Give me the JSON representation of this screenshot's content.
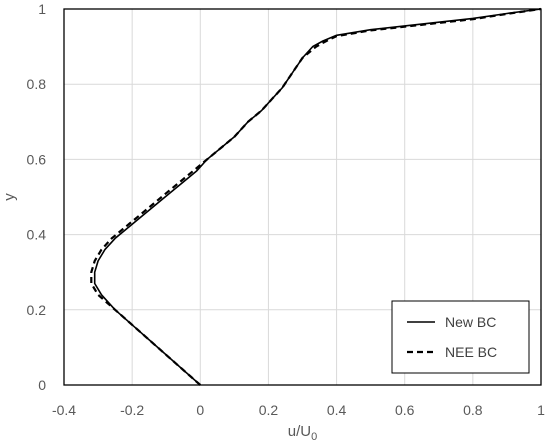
{
  "chart_data": {
    "type": "line",
    "title": "",
    "xlabel": "u/U",
    "xlabel_subscript": "0",
    "ylabel": "y",
    "xlim": [
      -0.4,
      1.0
    ],
    "ylim": [
      0,
      1.0
    ],
    "grid": true,
    "legend_position": "bottom-right",
    "x_ticks": [
      -0.4,
      -0.2,
      0,
      0.2,
      0.4,
      0.6,
      0.8,
      1
    ],
    "x_tick_labels": [
      "-0.4",
      "-0.2",
      "0",
      "0.2",
      "0.4",
      "0.6",
      "0.8",
      "1"
    ],
    "y_ticks": [
      0,
      0.2,
      0.4,
      0.6,
      0.8,
      1
    ],
    "y_tick_labels": [
      "0",
      "0.2",
      "0.4",
      "0.6",
      "0.8",
      "1"
    ],
    "series": [
      {
        "name": "New BC",
        "color": "#000000",
        "dash": "solid",
        "points": [
          [
            0,
            0
          ],
          [
            -0.05,
            0.04
          ],
          [
            -0.1,
            0.08
          ],
          [
            -0.15,
            0.12
          ],
          [
            -0.2,
            0.16
          ],
          [
            -0.25,
            0.2
          ],
          [
            -0.29,
            0.24
          ],
          [
            -0.31,
            0.27
          ],
          [
            -0.31,
            0.3
          ],
          [
            -0.3,
            0.33
          ],
          [
            -0.28,
            0.36
          ],
          [
            -0.25,
            0.39
          ],
          [
            -0.21,
            0.42
          ],
          [
            -0.17,
            0.45
          ],
          [
            -0.13,
            0.48
          ],
          [
            -0.09,
            0.51
          ],
          [
            -0.05,
            0.54
          ],
          [
            -0.01,
            0.57
          ],
          [
            0.02,
            0.6
          ],
          [
            0.06,
            0.63
          ],
          [
            0.1,
            0.66
          ],
          [
            0.14,
            0.7
          ],
          [
            0.18,
            0.73
          ],
          [
            0.21,
            0.76
          ],
          [
            0.24,
            0.79
          ],
          [
            0.27,
            0.83
          ],
          [
            0.3,
            0.87
          ],
          [
            0.33,
            0.9
          ],
          [
            0.36,
            0.915
          ],
          [
            0.4,
            0.93
          ],
          [
            0.5,
            0.945
          ],
          [
            0.6,
            0.955
          ],
          [
            0.7,
            0.965
          ],
          [
            0.8,
            0.975
          ],
          [
            0.9,
            0.988
          ],
          [
            1.0,
            1.0
          ]
        ]
      },
      {
        "name": "NEE BC",
        "color": "#000000",
        "dash": "dashed",
        "points": [
          [
            0,
            0
          ],
          [
            -0.05,
            0.04
          ],
          [
            -0.1,
            0.08
          ],
          [
            -0.15,
            0.12
          ],
          [
            -0.2,
            0.16
          ],
          [
            -0.25,
            0.2
          ],
          [
            -0.3,
            0.24
          ],
          [
            -0.32,
            0.27
          ],
          [
            -0.32,
            0.3
          ],
          [
            -0.31,
            0.33
          ],
          [
            -0.29,
            0.36
          ],
          [
            -0.26,
            0.39
          ],
          [
            -0.22,
            0.42
          ],
          [
            -0.18,
            0.45
          ],
          [
            -0.14,
            0.48
          ],
          [
            -0.1,
            0.51
          ],
          [
            -0.06,
            0.54
          ],
          [
            -0.02,
            0.57
          ],
          [
            0.02,
            0.6
          ],
          [
            0.06,
            0.63
          ],
          [
            0.1,
            0.66
          ],
          [
            0.14,
            0.7
          ],
          [
            0.18,
            0.73
          ],
          [
            0.21,
            0.76
          ],
          [
            0.24,
            0.79
          ],
          [
            0.27,
            0.83
          ],
          [
            0.3,
            0.87
          ],
          [
            0.34,
            0.9
          ],
          [
            0.37,
            0.915
          ],
          [
            0.4,
            0.928
          ],
          [
            0.5,
            0.943
          ],
          [
            0.6,
            0.953
          ],
          [
            0.7,
            0.963
          ],
          [
            0.8,
            0.973
          ],
          [
            0.9,
            0.987
          ],
          [
            1.0,
            1.0
          ]
        ]
      }
    ]
  }
}
